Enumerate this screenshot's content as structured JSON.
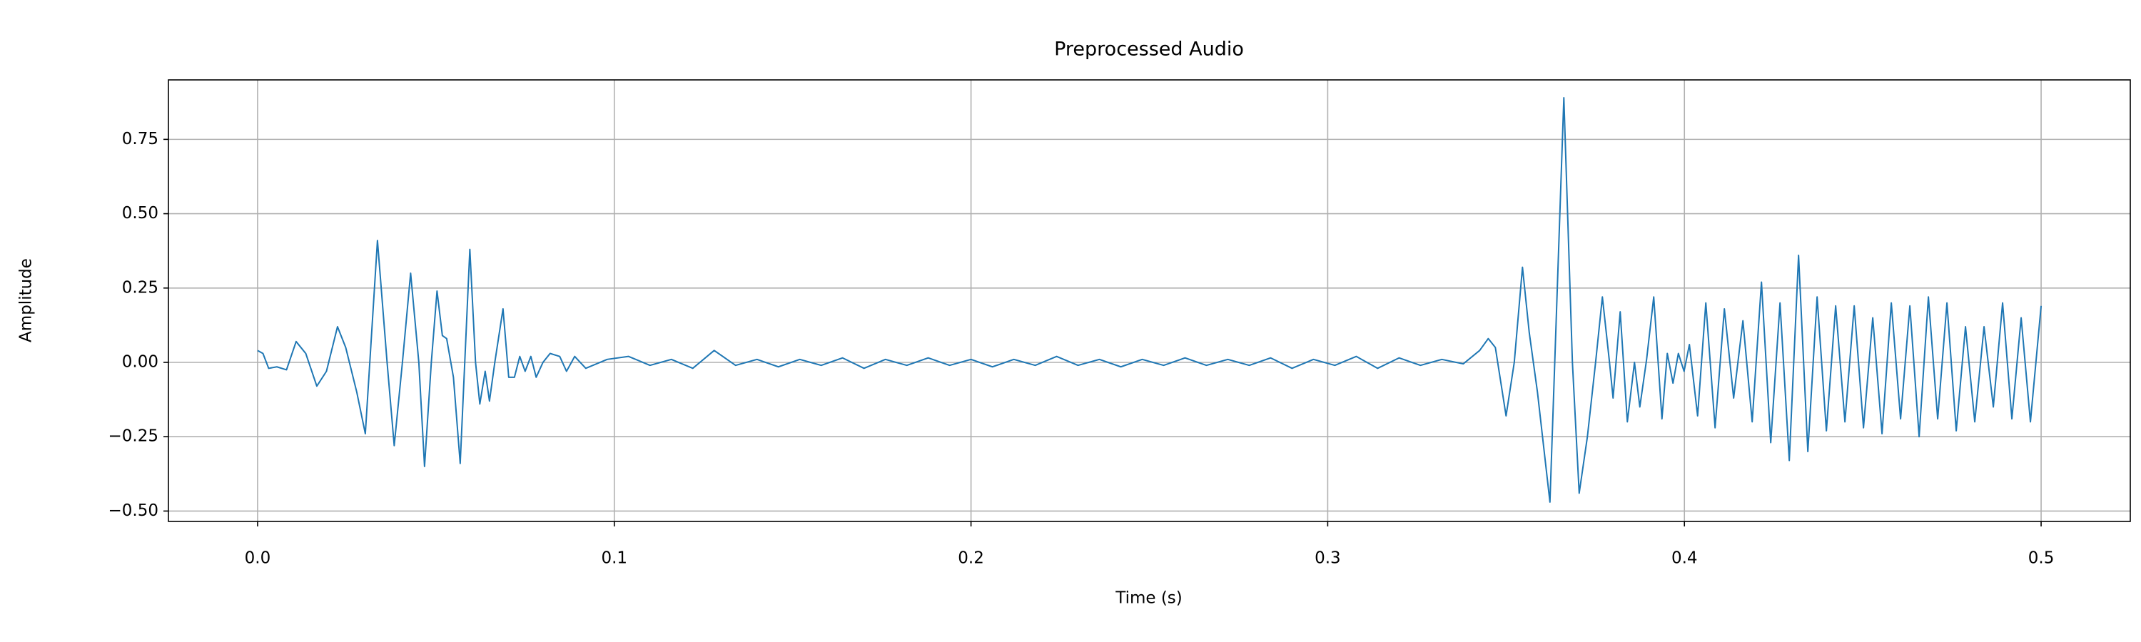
{
  "chart_data": {
    "type": "line",
    "title": "Preprocessed Audio",
    "x_label": "Time (s)",
    "y_label": "Amplitude",
    "grid": true,
    "xlim": [
      -0.025,
      0.525
    ],
    "ylim": [
      -0.535,
      0.95
    ],
    "xticks": [
      {
        "value": 0,
        "label": "0.0"
      },
      0.1,
      0.2,
      0.3,
      0.4,
      0.5
    ],
    "yticks": [
      {
        "value": -0.5,
        "label": "−0.50"
      },
      {
        "value": -0.25,
        "label": "−0.25"
      },
      {
        "value": 0,
        "label": "0.00"
      },
      0.25,
      {
        "value": 0.5,
        "label": "0.50"
      },
      0.75
    ],
    "series": [
      {
        "color": "#1f77b4",
        "x": [
          0.0,
          0.0015,
          0.0031,
          0.0054,
          0.0081,
          0.0108,
          0.0135,
          0.0166,
          0.0193,
          0.0224,
          0.0247,
          0.0278,
          0.0302,
          0.0336,
          0.0363,
          0.0383,
          0.0406,
          0.0429,
          0.0452,
          0.0468,
          0.0487,
          0.0503,
          0.0518,
          0.053,
          0.0549,
          0.0568,
          0.0595,
          0.0611,
          0.0623,
          0.0638,
          0.065,
          0.0665,
          0.0688,
          0.0704,
          0.072,
          0.0735,
          0.075,
          0.0766,
          0.0781,
          0.08,
          0.082,
          0.0847,
          0.0866,
          0.0889,
          0.092,
          0.098,
          0.104,
          0.11,
          0.116,
          0.122,
          0.128,
          0.134,
          0.14,
          0.146,
          0.152,
          0.158,
          0.164,
          0.17,
          0.176,
          0.182,
          0.188,
          0.194,
          0.2,
          0.206,
          0.212,
          0.218,
          0.224,
          0.23,
          0.236,
          0.242,
          0.248,
          0.254,
          0.26,
          0.266,
          0.272,
          0.278,
          0.284,
          0.29,
          0.296,
          0.302,
          0.308,
          0.314,
          0.32,
          0.326,
          0.332,
          0.338,
          0.3426,
          0.345,
          0.347,
          0.35,
          0.3523,
          0.3546,
          0.3565,
          0.3588,
          0.3623,
          0.3662,
          0.3686,
          0.3705,
          0.3728,
          0.3751,
          0.377,
          0.379,
          0.38,
          0.382,
          0.384,
          0.386,
          0.3875,
          0.3894,
          0.3914,
          0.3937,
          0.3952,
          0.3968,
          0.3983,
          0.3999,
          0.4014,
          0.4037,
          0.406,
          0.4086,
          0.4112,
          0.4138,
          0.4164,
          0.419,
          0.4216,
          0.4242,
          0.4268,
          0.4294,
          0.432,
          0.4346,
          0.4372,
          0.4398,
          0.4424,
          0.445,
          0.4476,
          0.4502,
          0.4528,
          0.4554,
          0.458,
          0.4606,
          0.4632,
          0.4658,
          0.4684,
          0.471,
          0.4736,
          0.4762,
          0.4788,
          0.4814,
          0.484,
          0.4866,
          0.4892,
          0.4918,
          0.4944,
          0.497,
          0.5
        ],
        "values": [
          0.04,
          0.03,
          -0.02,
          -0.015,
          -0.025,
          0.07,
          0.03,
          -0.08,
          -0.03,
          0.12,
          0.05,
          -0.1,
          -0.24,
          0.41,
          0.0,
          -0.28,
          0.0,
          0.3,
          0.0,
          -0.35,
          0.0,
          0.24,
          0.09,
          0.08,
          -0.05,
          -0.34,
          0.38,
          0.0,
          -0.14,
          -0.03,
          -0.13,
          0.0,
          0.18,
          -0.05,
          -0.05,
          0.02,
          -0.03,
          0.02,
          -0.05,
          0.0,
          0.03,
          0.02,
          -0.03,
          0.02,
          -0.02,
          0.01,
          0.02,
          -0.01,
          0.01,
          -0.02,
          0.04,
          -0.01,
          0.01,
          -0.015,
          0.01,
          -0.01,
          0.015,
          -0.02,
          0.01,
          -0.01,
          0.015,
          -0.01,
          0.01,
          -0.015,
          0.01,
          -0.01,
          0.02,
          -0.01,
          0.01,
          -0.015,
          0.01,
          -0.01,
          0.015,
          -0.01,
          0.01,
          -0.01,
          0.015,
          -0.02,
          0.01,
          -0.01,
          0.02,
          -0.02,
          0.015,
          -0.01,
          0.01,
          -0.005,
          0.04,
          0.08,
          0.05,
          -0.18,
          0.0,
          0.32,
          0.1,
          -0.1,
          -0.47,
          0.89,
          0.0,
          -0.44,
          -0.25,
          0.0,
          0.22,
          0.0,
          -0.12,
          0.17,
          -0.2,
          0.0,
          -0.15,
          0.01,
          0.22,
          -0.19,
          0.03,
          -0.07,
          0.03,
          -0.03,
          0.06,
          -0.18,
          0.2,
          -0.22,
          0.18,
          -0.12,
          0.14,
          -0.2,
          0.27,
          -0.27,
          0.2,
          -0.33,
          0.36,
          -0.3,
          0.22,
          -0.23,
          0.19,
          -0.2,
          0.19,
          -0.22,
          0.15,
          -0.24,
          0.2,
          -0.19,
          0.19,
          -0.25,
          0.22,
          -0.19,
          0.2,
          -0.23,
          0.12,
          -0.2,
          0.12,
          -0.15,
          0.2,
          -0.19,
          0.15,
          -0.2,
          0.19
        ]
      }
    ]
  }
}
